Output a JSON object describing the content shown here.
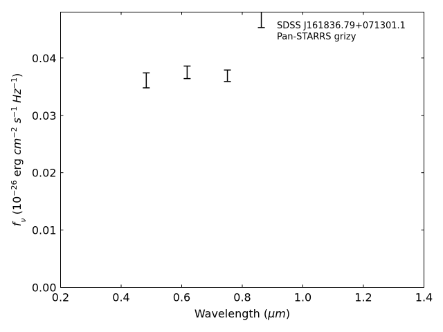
{
  "chart_data": {
    "type": "errorbar",
    "xlabel": [
      {
        "text": "Wavelength (",
        "style": "normal"
      },
      {
        "text": "μm",
        "style": "italic"
      },
      {
        "text": ")",
        "style": "normal"
      }
    ],
    "ylabel": [
      {
        "text": "f",
        "style": "italic"
      },
      {
        "text": "ν",
        "style": "sub"
      },
      {
        "text": " (10",
        "style": "normal"
      },
      {
        "text": "−26",
        "style": "sup"
      },
      {
        "text": " erg ",
        "style": "normal"
      },
      {
        "text": "cm",
        "style": "italic"
      },
      {
        "text": "−2",
        "style": "sup"
      },
      {
        "text": " ",
        "style": "normal"
      },
      {
        "text": "s",
        "style": "italic"
      },
      {
        "text": "−1",
        "style": "sup"
      },
      {
        "text": " ",
        "style": "normal"
      },
      {
        "text": "Hz",
        "style": "italic"
      },
      {
        "text": "−1",
        "style": "sup"
      },
      {
        "text": ")",
        "style": "normal"
      }
    ],
    "legend_title": "SDSS J161836.79+071301.1",
    "legend_loc": "upper right",
    "series": [
      {
        "name": "Pan-STARRS grizy",
        "color": "#000000",
        "x": [
          0.483,
          0.618,
          0.751,
          0.863
        ],
        "values": [
          0.0361,
          0.0375,
          0.0369,
          0.0475
        ],
        "errors": [
          0.0013,
          0.0011,
          0.001,
          0.0022
        ]
      }
    ],
    "xlim": [
      0.2,
      1.4
    ],
    "xticks": [
      0.2,
      0.4,
      0.6,
      0.8,
      {
        "value": 1,
        "label": "1.0"
      },
      1.2,
      1.4
    ],
    "ylim": [
      0,
      0.048
    ],
    "yticks": [
      {
        "value": 0,
        "label": "0.00"
      },
      0.01,
      0.02,
      0.03,
      0.04
    ]
  }
}
